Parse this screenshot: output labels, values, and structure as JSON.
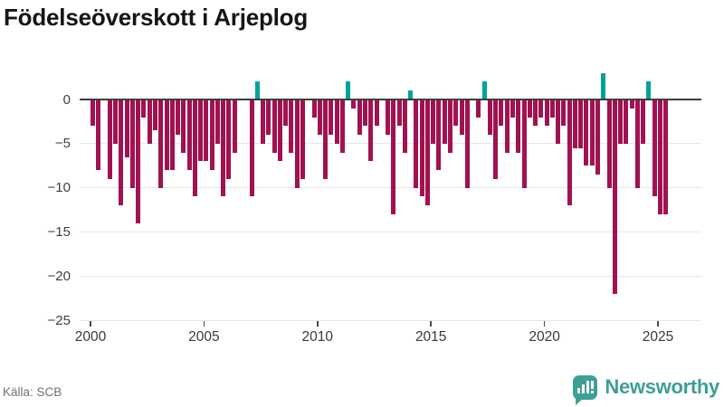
{
  "header": {
    "title": "Födelseöverskott i Arjeplog"
  },
  "footer": {
    "source": "Källa: SCB"
  },
  "logo": {
    "brand": "Newsworthy",
    "color": "#3f9e98"
  },
  "chart_data": {
    "type": "bar",
    "title": "Födelseöverskott i Arjeplog",
    "frequency": "quarterly",
    "start": "2000-Q1",
    "end": "2025-Q2",
    "series": [
      {
        "name": "Födelseöverskott",
        "values": [
          -3,
          -8,
          0,
          -9,
          -5,
          -12,
          -6.5,
          -10,
          -14,
          -2,
          -5,
          -3.5,
          -10,
          -8,
          -8,
          -4,
          -6,
          -8,
          -11,
          -7,
          -7,
          -8,
          -5,
          -11,
          -9,
          -6,
          0,
          0,
          -11,
          2,
          -5,
          -4,
          -6,
          -7,
          -3,
          -6,
          -10,
          -9,
          0,
          -2,
          -4,
          -9,
          -4,
          -5,
          -6,
          2,
          -1,
          -4,
          -3,
          -7,
          -3,
          0,
          -4,
          -13,
          -3,
          -6,
          1,
          -10,
          -11,
          -12,
          -5,
          -8,
          -5,
          -6,
          -3,
          -4,
          -10,
          0,
          -2,
          2,
          -4,
          -9,
          -3,
          -6,
          -2,
          -6,
          -10,
          -2,
          -3,
          -2,
          -3,
          -2,
          -5,
          -3,
          -12,
          -5.5,
          -5.5,
          -7.5,
          -7.5,
          -8.5,
          3,
          -10,
          -22,
          -5,
          -5,
          -1,
          -10,
          -5,
          2,
          -11,
          -13,
          -13
        ]
      }
    ],
    "x_ticks": [
      2000,
      2005,
      2010,
      2015,
      2020,
      2025
    ],
    "y_ticks": [
      0,
      -5,
      -10,
      -15,
      -20,
      -25
    ],
    "y_tick_labels": [
      "0",
      "−5",
      "−10",
      "−15",
      "−20",
      "−25"
    ],
    "ylim": [
      -25.5,
      3.2
    ],
    "grid": "horizontal",
    "legend": "none",
    "colors": {
      "negative": "#a11251",
      "positive": "#00a29d"
    }
  }
}
